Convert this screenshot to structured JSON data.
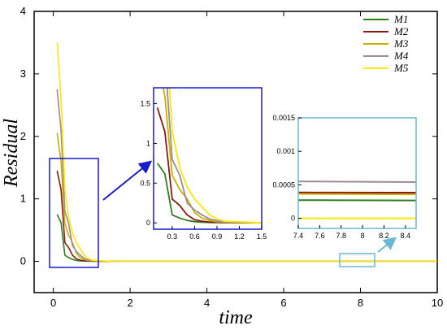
{
  "chart_data": {
    "type": "line",
    "xlabel": "time",
    "ylabel": "Residual",
    "xlim": [
      -0.5,
      10
    ],
    "ylim": [
      -0.5,
      4
    ],
    "xticks": [
      0,
      2,
      4,
      6,
      8,
      10
    ],
    "yticks": [
      0,
      1,
      2,
      3,
      4
    ],
    "legend_position": "top-right",
    "series": [
      {
        "name": "M1",
        "color": "#2e7d1e",
        "x": [
          0.1,
          0.2,
          0.3,
          0.4,
          0.5,
          0.6,
          0.7,
          0.8,
          0.9,
          1.0,
          1.5,
          10
        ],
        "y": [
          0.75,
          0.62,
          0.1,
          0.06,
          0.03,
          0.015,
          0.008,
          0.005,
          0.003,
          0.0025,
          0.0003,
          0.00026
        ]
      },
      {
        "name": "M2",
        "color": "#8b1a0e",
        "x": [
          0.1,
          0.2,
          0.3,
          0.4,
          0.5,
          0.6,
          0.7,
          0.8,
          0.9,
          1.0,
          1.5,
          10
        ],
        "y": [
          1.45,
          1.15,
          0.3,
          0.22,
          0.1,
          0.04,
          0.02,
          0.01,
          0.006,
          0.004,
          0.0004,
          0.00038
        ]
      },
      {
        "name": "M3",
        "color": "#c9b000",
        "x": [
          0.1,
          0.2,
          0.3,
          0.4,
          0.5,
          0.6,
          0.7,
          0.8,
          0.9,
          1.0,
          1.5,
          10
        ],
        "y": [
          2.05,
          1.6,
          0.6,
          0.42,
          0.3,
          0.13,
          0.06,
          0.03,
          0.015,
          0.008,
          0.0004,
          0.00035
        ]
      },
      {
        "name": "M4",
        "color": "#9a8c98",
        "x": [
          0.1,
          0.2,
          0.3,
          0.4,
          0.5,
          0.6,
          0.7,
          0.8,
          0.9,
          1.0,
          1.5,
          10
        ],
        "y": [
          2.75,
          2.1,
          0.8,
          0.6,
          0.25,
          0.16,
          0.1,
          0.05,
          0.025,
          0.012,
          0.0006,
          0.00053
        ]
      },
      {
        "name": "M5",
        "color": "#ffe600",
        "x": [
          0.1,
          0.2,
          0.3,
          0.4,
          0.5,
          0.6,
          0.7,
          0.8,
          0.9,
          1.0,
          1.5,
          10
        ],
        "y": [
          3.5,
          2.6,
          1.15,
          0.7,
          0.45,
          0.3,
          0.2,
          0.1,
          0.05,
          0.02,
          0.0,
          0.0
        ]
      }
    ],
    "insets": [
      {
        "frame_color": "#1a1acc",
        "xlim": [
          0.05,
          1.5
        ],
        "ylim": [
          -0.08,
          1.7
        ],
        "xticks": [
          "0.3",
          "0.6",
          "0.9",
          "1.2",
          "1.5"
        ],
        "yticks": [
          "0",
          "0.5",
          "1",
          "1.5"
        ]
      },
      {
        "frame_color": "#6ab8d6",
        "xlim": [
          7.4,
          8.5
        ],
        "ylim": [
          -0.00015,
          0.0015
        ],
        "xticks": [
          "7.4",
          "7.6",
          "7.8",
          "8",
          "8.2",
          "8.4"
        ],
        "yticks": [
          "0",
          "0.0005",
          "0.001",
          "0.0015"
        ]
      }
    ]
  }
}
